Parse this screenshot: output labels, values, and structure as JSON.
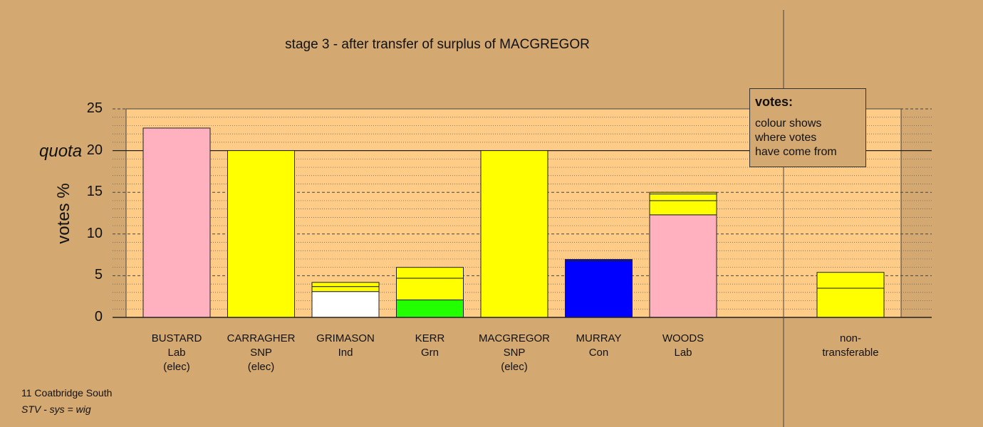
{
  "chart_data": {
    "type": "bar",
    "stacked": true,
    "title": "stage 3 - after transfer of surplus of MACGREGOR",
    "ylabel": "votes %",
    "ylim": [
      0,
      25
    ],
    "yticks": [
      0,
      5,
      10,
      15,
      20,
      25
    ],
    "quota": {
      "label": "quota",
      "value": 20
    },
    "grid": true,
    "candidates": [
      {
        "lines": [
          "BUSTARD",
          "Lab",
          "(elec)"
        ],
        "segments": [
          {
            "value": 22.7,
            "color": "#ffb1c0"
          }
        ]
      },
      {
        "lines": [
          "CARRAGHER",
          "SNP",
          "(elec)"
        ],
        "segments": [
          {
            "value": 20.0,
            "color": "#ffff00"
          }
        ]
      },
      {
        "lines": [
          "GRIMASON",
          "Ind"
        ],
        "segments": [
          {
            "value": 3.1,
            "color": "#ffffff"
          },
          {
            "value": 0.6,
            "color": "#ffff00"
          },
          {
            "value": 0.5,
            "color": "#ffff00"
          }
        ]
      },
      {
        "lines": [
          "KERR",
          "Grn"
        ],
        "segments": [
          {
            "value": 2.1,
            "color": "#22ff00"
          },
          {
            "value": 2.6,
            "color": "#ffff00"
          },
          {
            "value": 1.3,
            "color": "#ffff00"
          }
        ]
      },
      {
        "lines": [
          "MACGREGOR",
          "SNP",
          "(elec)"
        ],
        "segments": [
          {
            "value": 20.0,
            "color": "#ffff00"
          }
        ]
      },
      {
        "lines": [
          "MURRAY",
          "Con"
        ],
        "segments": [
          {
            "value": 6.8,
            "color": "#0000ff"
          },
          {
            "value": 0.15,
            "color": "#0000ff"
          }
        ]
      },
      {
        "lines": [
          "WOODS",
          "Lab"
        ],
        "segments": [
          {
            "value": 12.3,
            "color": "#ffb1c0"
          },
          {
            "value": 1.7,
            "color": "#ffff00"
          },
          {
            "value": 0.8,
            "color": "#ffff00"
          },
          {
            "value": 0.2,
            "color": "#ffff00"
          }
        ]
      }
    ],
    "nontransferable": {
      "lines": [
        "non-",
        "transferable"
      ],
      "segments": [
        {
          "value": 3.5,
          "color": "#ffff00"
        },
        {
          "value": 1.9,
          "color": "#ffff00"
        }
      ]
    }
  },
  "legend": {
    "title": "votes:",
    "lines": [
      "colour shows",
      "where votes",
      "have come from"
    ]
  },
  "footer": {
    "area": "11 Coatbridge South",
    "system": "STV - sys = wig"
  },
  "colors": {
    "background": "#d4a971",
    "plot_background": "#ffcc88"
  }
}
